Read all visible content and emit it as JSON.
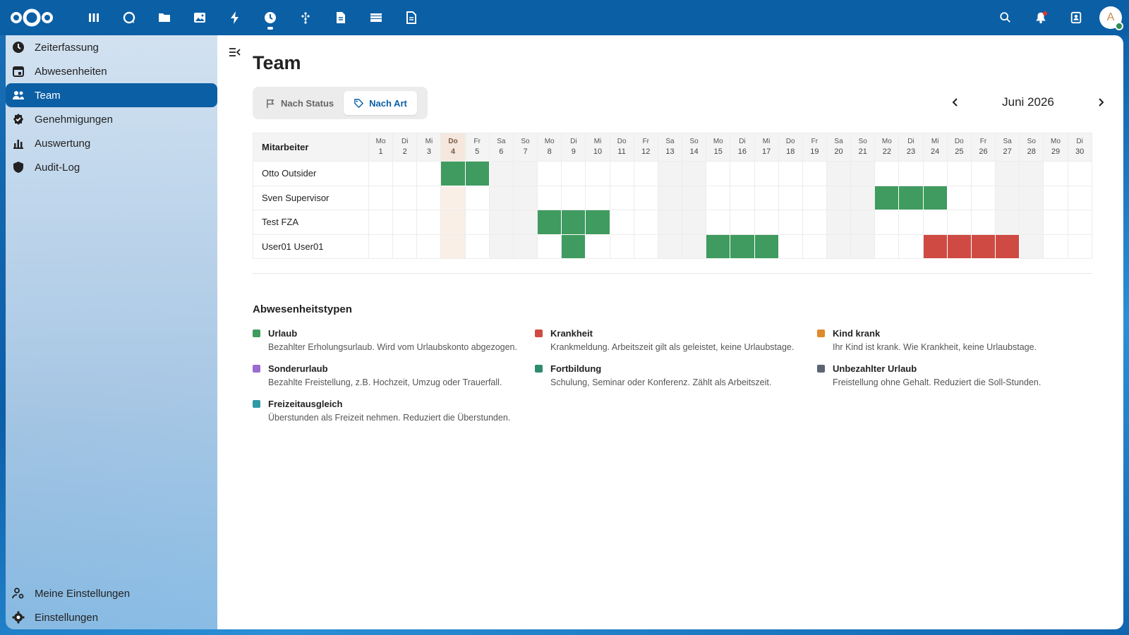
{
  "topbar": {
    "apps": [
      {
        "name": "dashboard-icon"
      },
      {
        "name": "talk-icon"
      },
      {
        "name": "files-icon"
      },
      {
        "name": "photos-icon"
      },
      {
        "name": "activity-icon"
      },
      {
        "name": "timetracking-icon",
        "active": true
      },
      {
        "name": "deck-icon"
      },
      {
        "name": "notes-icon"
      },
      {
        "name": "archive-icon"
      },
      {
        "name": "document-icon"
      }
    ],
    "avatar_initial": "A"
  },
  "sidebar": {
    "items": [
      {
        "label": "Zeiterfassung",
        "icon": "clock-icon"
      },
      {
        "label": "Abwesenheiten",
        "icon": "calendar-icon"
      },
      {
        "label": "Team",
        "icon": "team-icon",
        "active": true
      },
      {
        "label": "Genehmigungen",
        "icon": "approval-badge-icon"
      },
      {
        "label": "Auswertung",
        "icon": "bar-chart-icon"
      },
      {
        "label": "Audit-Log",
        "icon": "shield-icon"
      }
    ],
    "bottom_items": [
      {
        "label": "Meine Einstellungen",
        "icon": "user-settings-icon"
      },
      {
        "label": "Einstellungen",
        "icon": "gear-icon"
      }
    ]
  },
  "main": {
    "title": "Team",
    "view_toggle": {
      "status_label": "Nach Status",
      "type_label": "Nach Art",
      "selected": "Nach Art"
    },
    "month_label": "Juni 2026",
    "calendar": {
      "employee_header": "Mitarbeiter",
      "today": 4,
      "days": [
        {
          "wd": "Mo",
          "d": "1"
        },
        {
          "wd": "Di",
          "d": "2"
        },
        {
          "wd": "Mi",
          "d": "3"
        },
        {
          "wd": "Do",
          "d": "4"
        },
        {
          "wd": "Fr",
          "d": "5"
        },
        {
          "wd": "Sa",
          "d": "6"
        },
        {
          "wd": "So",
          "d": "7"
        },
        {
          "wd": "Mo",
          "d": "8"
        },
        {
          "wd": "Di",
          "d": "9"
        },
        {
          "wd": "Mi",
          "d": "10"
        },
        {
          "wd": "Do",
          "d": "11"
        },
        {
          "wd": "Fr",
          "d": "12"
        },
        {
          "wd": "Sa",
          "d": "13"
        },
        {
          "wd": "So",
          "d": "14"
        },
        {
          "wd": "Mo",
          "d": "15"
        },
        {
          "wd": "Di",
          "d": "16"
        },
        {
          "wd": "Mi",
          "d": "17"
        },
        {
          "wd": "Do",
          "d": "18"
        },
        {
          "wd": "Fr",
          "d": "19"
        },
        {
          "wd": "Sa",
          "d": "20"
        },
        {
          "wd": "So",
          "d": "21"
        },
        {
          "wd": "Mo",
          "d": "22"
        },
        {
          "wd": "Di",
          "d": "23"
        },
        {
          "wd": "Mi",
          "d": "24"
        },
        {
          "wd": "Do",
          "d": "25"
        },
        {
          "wd": "Fr",
          "d": "26"
        },
        {
          "wd": "Sa",
          "d": "27"
        },
        {
          "wd": "So",
          "d": "28"
        },
        {
          "wd": "Mo",
          "d": "29"
        },
        {
          "wd": "Di",
          "d": "30"
        }
      ],
      "employees": [
        {
          "name": "Otto Outsider",
          "absences": [
            {
              "day": 4,
              "type": "urlaub"
            },
            {
              "day": 5,
              "type": "urlaub"
            }
          ]
        },
        {
          "name": "Sven Supervisor",
          "absences": [
            {
              "day": 22,
              "type": "urlaub"
            },
            {
              "day": 23,
              "type": "urlaub"
            },
            {
              "day": 24,
              "type": "urlaub"
            }
          ]
        },
        {
          "name": "Test FZA",
          "absences": [
            {
              "day": 8,
              "type": "urlaub"
            },
            {
              "day": 9,
              "type": "urlaub"
            },
            {
              "day": 10,
              "type": "urlaub"
            }
          ]
        },
        {
          "name": "User01 User01",
          "absences": [
            {
              "day": 9,
              "type": "urlaub"
            },
            {
              "day": 15,
              "type": "urlaub"
            },
            {
              "day": 16,
              "type": "urlaub"
            },
            {
              "day": 17,
              "type": "urlaub"
            },
            {
              "day": 24,
              "type": "krankheit"
            },
            {
              "day": 25,
              "type": "krankheit"
            },
            {
              "day": 26,
              "type": "krankheit"
            },
            {
              "day": 27,
              "type": "krankheit"
            }
          ]
        }
      ]
    },
    "legend": {
      "title": "Abwesenheitstypen",
      "types": [
        {
          "key": "urlaub",
          "name": "Urlaub",
          "desc": "Bezahlter Erholungsurlaub. Wird vom Urlaubskonto abgezogen.",
          "color": "#3f9b5f"
        },
        {
          "key": "krankheit",
          "name": "Krankheit",
          "desc": "Krankmeldung. Arbeitszeit gilt als geleistet, keine Urlaubstage.",
          "color": "#cf4a43"
        },
        {
          "key": "kind-krank",
          "name": "Kind krank",
          "desc": "Ihr Kind ist krank. Wie Krankheit, keine Urlaubstage.",
          "color": "#e08a2e"
        },
        {
          "key": "sonderurlaub",
          "name": "Sonderurlaub",
          "desc": "Bezahlte Freistellung, z.B. Hochzeit, Umzug oder Trauerfall.",
          "color": "#9b6bcf"
        },
        {
          "key": "fortbildung",
          "name": "Fortbildung",
          "desc": "Schulung, Seminar oder Konferenz. Zählt als Arbeitszeit.",
          "color": "#2e8b6f"
        },
        {
          "key": "unbezahlt",
          "name": "Unbezahlter Urlaub",
          "desc": "Freistellung ohne Gehalt. Reduziert die Soll-Stunden.",
          "color": "#5a6473"
        },
        {
          "key": "freizeitausgleich",
          "name": "Freizeitausgleich",
          "desc": "Überstunden als Freizeit nehmen. Reduziert die Überstunden.",
          "color": "#2f9aa6"
        }
      ]
    }
  }
}
